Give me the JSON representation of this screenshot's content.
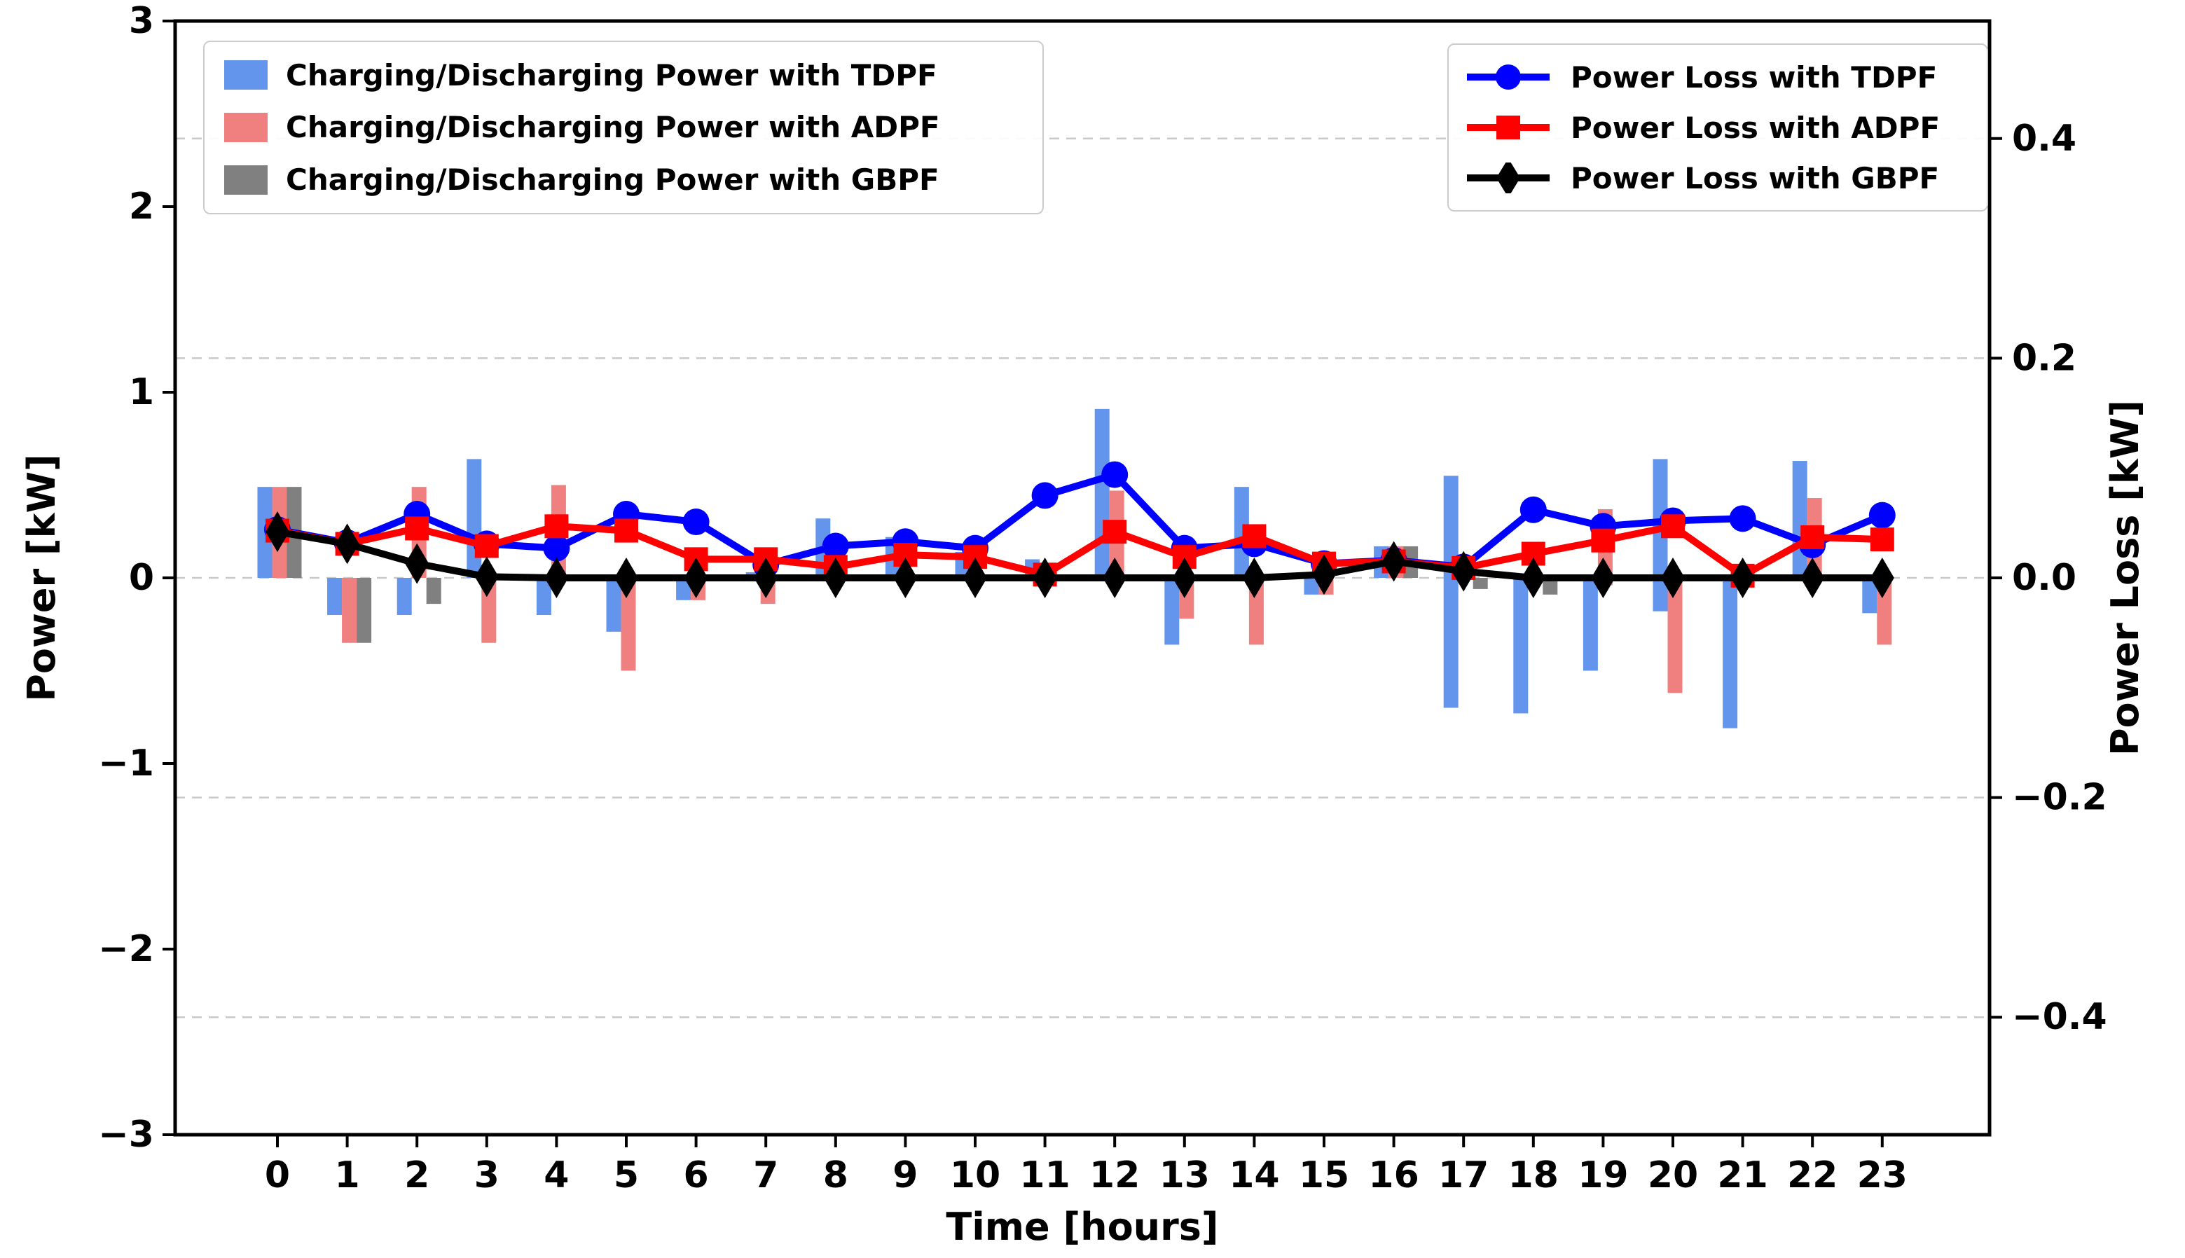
{
  "figure": {
    "background": "#ffffff"
  },
  "chart_data": {
    "type": "bar",
    "subtype": "grouped-bars-with-lines-dual-axis",
    "categories": [
      0,
      1,
      2,
      3,
      4,
      5,
      6,
      7,
      8,
      9,
      10,
      11,
      12,
      13,
      14,
      15,
      16,
      17,
      18,
      19,
      20,
      21,
      22,
      23
    ],
    "xlabel": "Time [hours]",
    "x_tick_labels": [
      "0",
      "1",
      "2",
      "3",
      "4",
      "5",
      "6",
      "7",
      "8",
      "9",
      "10",
      "11",
      "12",
      "13",
      "14",
      "15",
      "16",
      "17",
      "18",
      "19",
      "20",
      "21",
      "22",
      "23"
    ],
    "left_axis": {
      "label": "Power [kW]",
      "tick_values": [
        3,
        2,
        1,
        0,
        -1,
        -2,
        -3
      ],
      "tick_labels": [
        "3",
        "2",
        "1",
        "0",
        "−1",
        "−2",
        "−3"
      ],
      "range": [
        -3,
        3
      ]
    },
    "right_axis": {
      "label": "Power Loss [kW]",
      "tick_values": [
        0.4,
        0.2,
        0.0,
        -0.2,
        -0.4
      ],
      "tick_labels": [
        "0.4",
        "0.2",
        "0.0",
        "−0.2",
        "−0.4"
      ],
      "range": [
        -0.507,
        0.507
      ]
    },
    "grid": {
      "on": true,
      "right_axis_values": [
        0.4,
        0.2,
        0.0,
        -0.2,
        -0.4
      ],
      "style": "dashed",
      "color": "#c9c9c9"
    },
    "bar_series": [
      {
        "name": "Charging/Discharging Power with TDPF",
        "color": "#6495ED",
        "axis": "left",
        "bars": [
          [
            0,
            0.49
          ],
          [
            -0.2,
            0
          ],
          [
            -0.2,
            0
          ],
          [
            0,
            0.64
          ],
          [
            -0.2,
            0
          ],
          [
            -0.29,
            0
          ],
          [
            -0.12,
            0
          ],
          [
            0,
            0.03
          ],
          [
            0,
            0.32
          ],
          [
            0,
            0.22
          ],
          [
            0,
            0.14
          ],
          [
            0,
            0.1
          ],
          [
            0,
            0.91
          ],
          [
            -0.36,
            0
          ],
          [
            0,
            0.49
          ],
          [
            -0.09,
            0
          ],
          [
            0,
            0.17
          ],
          [
            -0.7,
            0.55
          ],
          [
            -0.73,
            0
          ],
          [
            -0.5,
            0
          ],
          [
            -0.18,
            0.64
          ],
          [
            -0.81,
            0
          ],
          [
            0,
            0.63
          ],
          [
            -0.19,
            0
          ]
        ]
      },
      {
        "name": "Charging/Discharging Power with ADPF",
        "color": "#F08080",
        "axis": "left",
        "bars": [
          [
            0,
            0.49
          ],
          [
            -0.35,
            0
          ],
          [
            0,
            0.49
          ],
          [
            -0.35,
            0
          ],
          [
            0,
            0.5
          ],
          [
            -0.5,
            0
          ],
          [
            -0.12,
            0
          ],
          [
            -0.14,
            0
          ],
          [
            0,
            0
          ],
          [
            0,
            0
          ],
          [
            0,
            0
          ],
          [
            0,
            0
          ],
          [
            0,
            0.47
          ],
          [
            -0.22,
            0
          ],
          [
            -0.36,
            0
          ],
          [
            -0.09,
            0
          ],
          [
            0,
            0.17
          ],
          [
            0,
            0
          ],
          [
            0,
            0
          ],
          [
            -0.04,
            0.37
          ],
          [
            -0.62,
            0
          ],
          [
            0,
            0
          ],
          [
            0,
            0.43
          ],
          [
            -0.36,
            0
          ]
        ]
      },
      {
        "name": "Charging/Discharging Power with GBPF",
        "color": "#808080",
        "axis": "left",
        "bars": [
          [
            0,
            0.49
          ],
          [
            -0.35,
            0
          ],
          [
            -0.14,
            0
          ],
          [
            0,
            0
          ],
          [
            0,
            0
          ],
          [
            0,
            0
          ],
          [
            0,
            0
          ],
          [
            0,
            0
          ],
          [
            0,
            0
          ],
          [
            0,
            0
          ],
          [
            0,
            0
          ],
          [
            0,
            0
          ],
          [
            0,
            0
          ],
          [
            0,
            0
          ],
          [
            0,
            0
          ],
          [
            0,
            0
          ],
          [
            0,
            0.17
          ],
          [
            -0.06,
            0
          ],
          [
            -0.09,
            0
          ],
          [
            0,
            0
          ],
          [
            0,
            0
          ],
          [
            0,
            0
          ],
          [
            0,
            0
          ],
          [
            0,
            0
          ]
        ]
      }
    ],
    "line_series": [
      {
        "name": "Power Loss with TDPF",
        "color": "#0000FF",
        "marker": "circle",
        "axis": "right",
        "values": [
          0.044,
          0.032,
          0.058,
          0.031,
          0.027,
          0.058,
          0.051,
          0.012,
          0.029,
          0.033,
          0.027,
          0.075,
          0.094,
          0.027,
          0.031,
          0.013,
          0.016,
          0.01,
          0.062,
          0.047,
          0.052,
          0.054,
          0.03,
          0.057
        ]
      },
      {
        "name": "Power Loss with ADPF",
        "color": "#FF0000",
        "marker": "square",
        "axis": "right",
        "values": [
          0.043,
          0.031,
          0.045,
          0.029,
          0.047,
          0.043,
          0.017,
          0.017,
          0.01,
          0.021,
          0.019,
          0.003,
          0.042,
          0.019,
          0.038,
          0.013,
          0.015,
          0.009,
          0.022,
          0.034,
          0.047,
          0.002,
          0.037,
          0.035
        ]
      },
      {
        "name": "Power Loss with GBPF",
        "color": "#000000",
        "marker": "diamond",
        "axis": "right",
        "values": [
          0.042,
          0.031,
          0.013,
          0.001,
          0,
          0,
          0,
          0,
          0,
          0,
          0,
          0,
          0,
          0,
          0,
          0.003,
          0.015,
          0.006,
          0,
          0,
          0,
          0,
          0,
          0
        ]
      }
    ]
  }
}
